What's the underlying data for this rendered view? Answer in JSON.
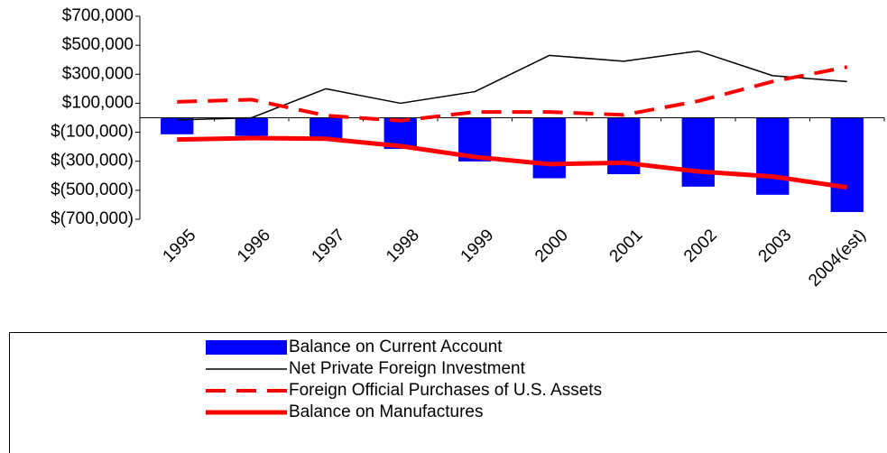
{
  "chart_data": {
    "type": "bar",
    "categories": [
      "1995",
      "1996",
      "1997",
      "1998",
      "1999",
      "2000",
      "2001",
      "2002",
      "2003",
      "2004(est)"
    ],
    "ylim": [
      -700000,
      700000
    ],
    "yticks": [
      {
        "value": 700000,
        "label": "$700,000"
      },
      {
        "value": 500000,
        "label": "$500,000"
      },
      {
        "value": 300000,
        "label": "$300,000"
      },
      {
        "value": 100000,
        "label": "$100,000"
      },
      {
        "value": -100000,
        "label": "$(100,000)"
      },
      {
        "value": -300000,
        "label": "$(300,000)"
      },
      {
        "value": -500000,
        "label": "$(500,000)"
      },
      {
        "value": -700000,
        "label": "$(700,000)"
      }
    ],
    "grid": false,
    "series": [
      {
        "name": "Balance on Current Account",
        "type": "bar",
        "color": "#0000ff",
        "values": [
          -114000,
          -125000,
          -141000,
          -215000,
          -301000,
          -417000,
          -389000,
          -475000,
          -531000,
          -650000
        ]
      },
      {
        "name": "Net Private Foreign Investment",
        "type": "line",
        "color": "#000000",
        "line_width": 1.5,
        "dashed": false,
        "values": [
          -15000,
          0,
          200000,
          100000,
          180000,
          430000,
          390000,
          460000,
          290000,
          250000
        ]
      },
      {
        "name": "Foreign Official Purchases of U.S. Assets",
        "type": "line",
        "color": "#ff0000",
        "line_width": 4,
        "dashed": true,
        "values": [
          110000,
          125000,
          15000,
          -20000,
          40000,
          40000,
          20000,
          115000,
          250000,
          350000
        ]
      },
      {
        "name": "Balance on Manufactures",
        "type": "line",
        "color": "#ff0000",
        "line_width": 5,
        "dashed": false,
        "values": [
          -150000,
          -140000,
          -145000,
          -195000,
          -270000,
          -320000,
          -310000,
          -370000,
          -405000,
          -480000
        ]
      }
    ]
  }
}
